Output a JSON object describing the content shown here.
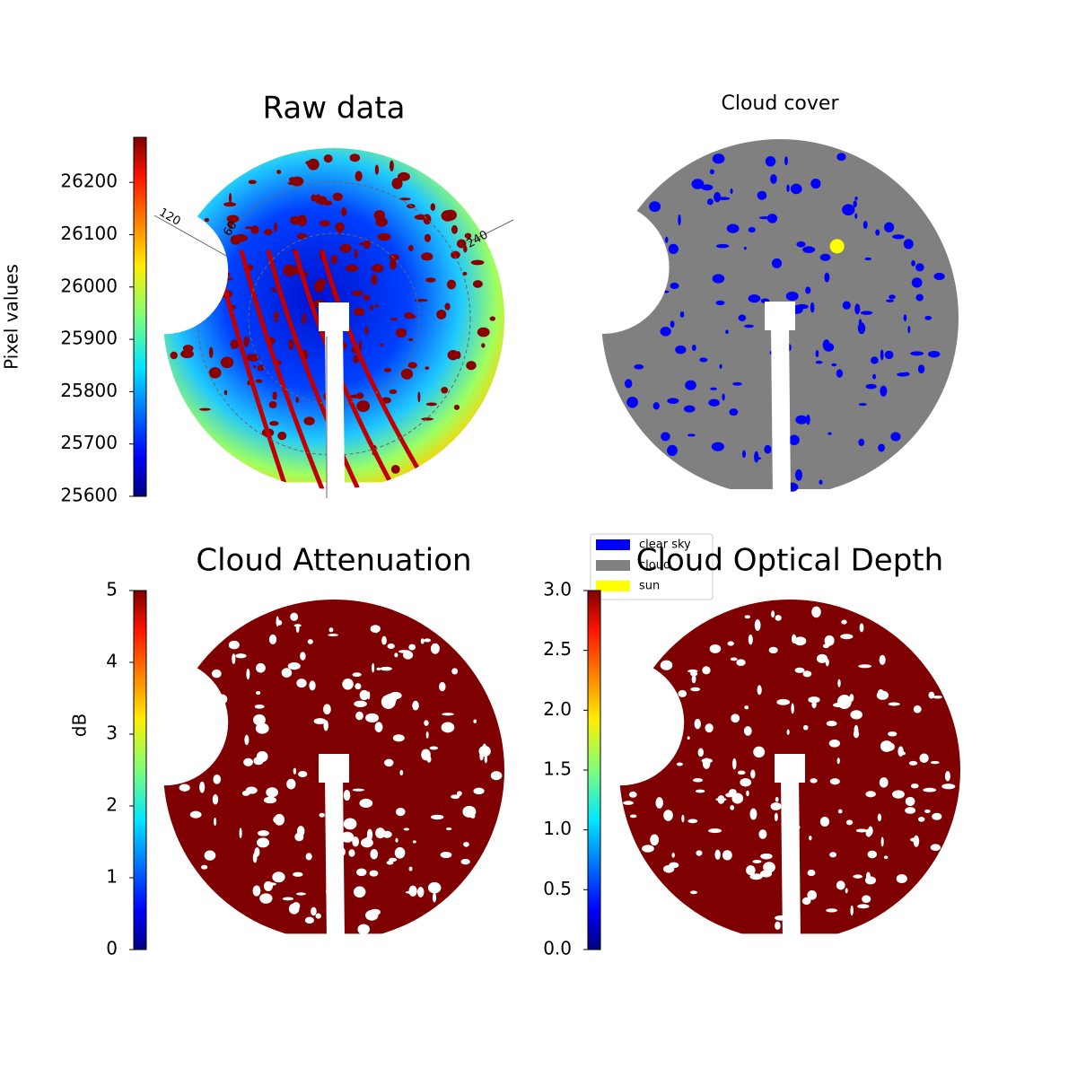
{
  "chart_data": [
    {
      "type": "image",
      "title": "Raw data",
      "colorbar": {
        "label": "Pixel values",
        "lim": [
          25600,
          26286
        ],
        "ticks": [
          25600,
          25700,
          25800,
          25900,
          26000,
          26100,
          26200
        ],
        "colormap": "jet"
      },
      "annotations": [
        "120",
        "60",
        "240"
      ]
    },
    {
      "type": "image",
      "title": "Cloud cover",
      "series": [
        {
          "name": "clear sky",
          "color": "#0000ff"
        },
        {
          "name": "cloud",
          "color": "#808080"
        },
        {
          "name": "sun",
          "color": "#ffff00"
        }
      ]
    },
    {
      "type": "image",
      "title": "Cloud Attenuation",
      "color": "#7f0000",
      "colorbar": {
        "label": "dB",
        "lim": [
          0,
          5
        ],
        "ticks": [
          0,
          1,
          2,
          3,
          4,
          5
        ],
        "colormap": "jet"
      }
    },
    {
      "type": "image",
      "title": "Cloud Optical Depth",
      "color": "#7f0000",
      "colorbar": {
        "lim": [
          0,
          3
        ],
        "ticks": [
          {
            "value": 0,
            "label": "0.0"
          },
          0.5,
          {
            "value": 1,
            "label": "1.0"
          },
          1.5,
          {
            "value": 2,
            "label": "2.0"
          },
          2.5,
          {
            "value": 3,
            "label": "3.0"
          }
        ],
        "colormap": "jet"
      }
    }
  ]
}
